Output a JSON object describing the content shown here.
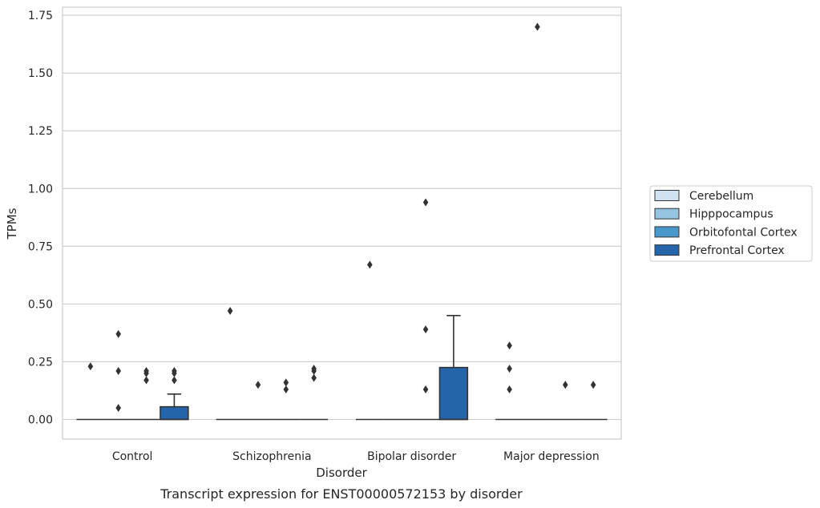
{
  "chart_data": {
    "type": "box",
    "caption": "Transcript expression for ENST00000572153 by disorder",
    "xlabel": "Disorder",
    "ylabel": "TPMs",
    "ylim": [
      -0.085,
      1.785
    ],
    "yticks": [
      0.0,
      0.25,
      0.5,
      0.75,
      1.0,
      1.25,
      1.5,
      1.75
    ],
    "ytick_labels": [
      "0.00",
      "0.25",
      "0.50",
      "0.75",
      "1.00",
      "1.25",
      "1.50",
      "1.75"
    ],
    "categories": [
      "Control",
      "Schizophrenia",
      "Bipolar disorder",
      "Major depression"
    ],
    "grid": "horizontal",
    "legend_position": "right",
    "series": [
      {
        "name": "Cerebellum",
        "color": "#d0e1f2",
        "boxes": [
          {
            "q1": 0,
            "median": 0,
            "q3": 0,
            "whisker_low": 0,
            "whisker_high": 0,
            "outliers": [
              0.23
            ]
          },
          {
            "q1": 0,
            "median": 0,
            "q3": 0,
            "whisker_low": 0,
            "whisker_high": 0,
            "outliers": [
              0.47
            ]
          },
          {
            "q1": 0,
            "median": 0,
            "q3": 0,
            "whisker_low": 0,
            "whisker_high": 0,
            "outliers": [
              0.67
            ]
          },
          {
            "q1": 0,
            "median": 0,
            "q3": 0,
            "whisker_low": 0,
            "whisker_high": 0,
            "outliers": [
              0.32,
              0.22,
              0.13
            ]
          }
        ]
      },
      {
        "name": "Hipppocampus",
        "color": "#94c4df",
        "boxes": [
          {
            "q1": 0,
            "median": 0,
            "q3": 0,
            "whisker_low": 0,
            "whisker_high": 0,
            "outliers": [
              0.37,
              0.21,
              0.05
            ]
          },
          {
            "q1": 0,
            "median": 0,
            "q3": 0,
            "whisker_low": 0,
            "whisker_high": 0,
            "outliers": [
              0.15
            ]
          },
          {
            "q1": 0,
            "median": 0,
            "q3": 0,
            "whisker_low": 0,
            "whisker_high": 0,
            "outliers": []
          },
          {
            "q1": 0,
            "median": 0,
            "q3": 0,
            "whisker_low": 0,
            "whisker_high": 0,
            "outliers": [
              1.7
            ]
          }
        ]
      },
      {
        "name": "Orbitofontal Cortex",
        "color": "#4a98c9",
        "boxes": [
          {
            "q1": 0,
            "median": 0,
            "q3": 0,
            "whisker_low": 0,
            "whisker_high": 0,
            "outliers": [
              0.21,
              0.2,
              0.17
            ]
          },
          {
            "q1": 0,
            "median": 0,
            "q3": 0,
            "whisker_low": 0,
            "whisker_high": 0,
            "outliers": [
              0.16,
              0.13
            ]
          },
          {
            "q1": 0,
            "median": 0,
            "q3": 0,
            "whisker_low": 0,
            "whisker_high": 0,
            "outliers": [
              0.94,
              0.39,
              0.13
            ]
          },
          {
            "q1": 0,
            "median": 0,
            "q3": 0,
            "whisker_low": 0,
            "whisker_high": 0,
            "outliers": [
              0.15
            ]
          }
        ]
      },
      {
        "name": "Prefrontal Cortex",
        "color": "#2464ab",
        "boxes": [
          {
            "q1": 0,
            "median": 0,
            "q3": 0.055,
            "whisker_low": 0,
            "whisker_high": 0.11,
            "outliers": [
              0.21,
              0.2,
              0.17
            ]
          },
          {
            "q1": 0,
            "median": 0,
            "q3": 0,
            "whisker_low": 0,
            "whisker_high": 0,
            "outliers": [
              0.22,
              0.21,
              0.18
            ]
          },
          {
            "q1": 0,
            "median": 0,
            "q3": 0.225,
            "whisker_low": 0,
            "whisker_high": 0.45,
            "outliers": []
          },
          {
            "q1": 0,
            "median": 0,
            "q3": 0,
            "whisker_low": 0,
            "whisker_high": 0,
            "outliers": [
              0.15
            ]
          }
        ]
      }
    ]
  }
}
